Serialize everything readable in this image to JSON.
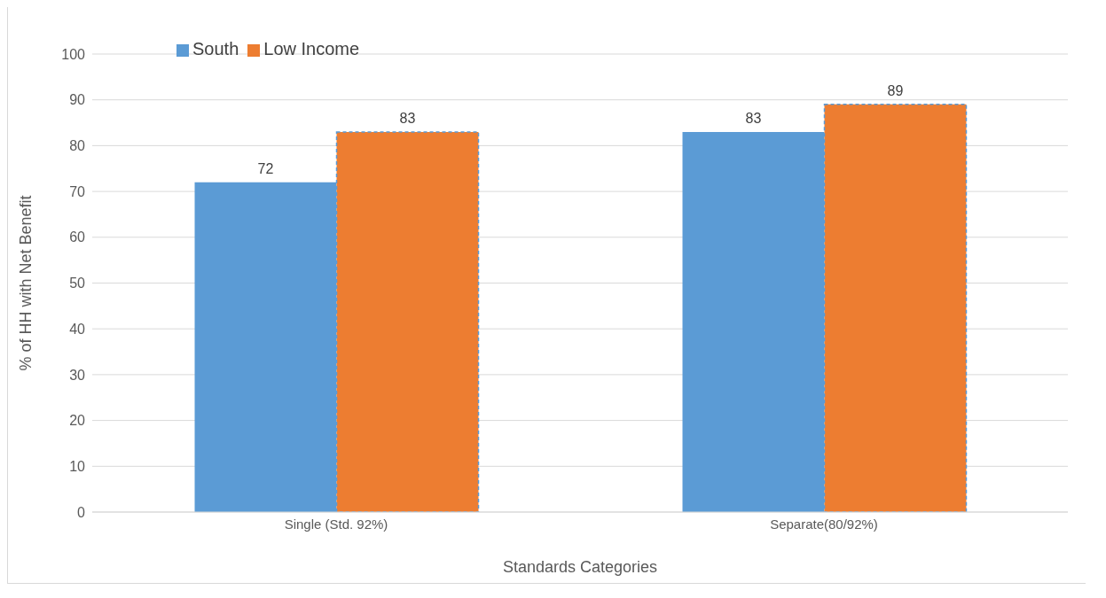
{
  "chart_data": {
    "type": "bar",
    "xlabel": "Standards Categories",
    "ylabel": "% of HH with Net Benefit",
    "categories": [
      "Single  (Std. 92%)",
      "Separate(80/92%)"
    ],
    "series": [
      {
        "name": "South",
        "color": "#5b9bd5",
        "values": [
          72,
          83
        ]
      },
      {
        "name": "Low Income",
        "color": "#ed7d31",
        "values": [
          83,
          89
        ]
      }
    ],
    "ylim": [
      0,
      100
    ],
    "yticks": [
      0,
      10,
      20,
      30,
      40,
      50,
      60,
      70,
      80,
      90,
      100
    ],
    "grid": "y",
    "legend": "top left",
    "data_labels": true
  }
}
